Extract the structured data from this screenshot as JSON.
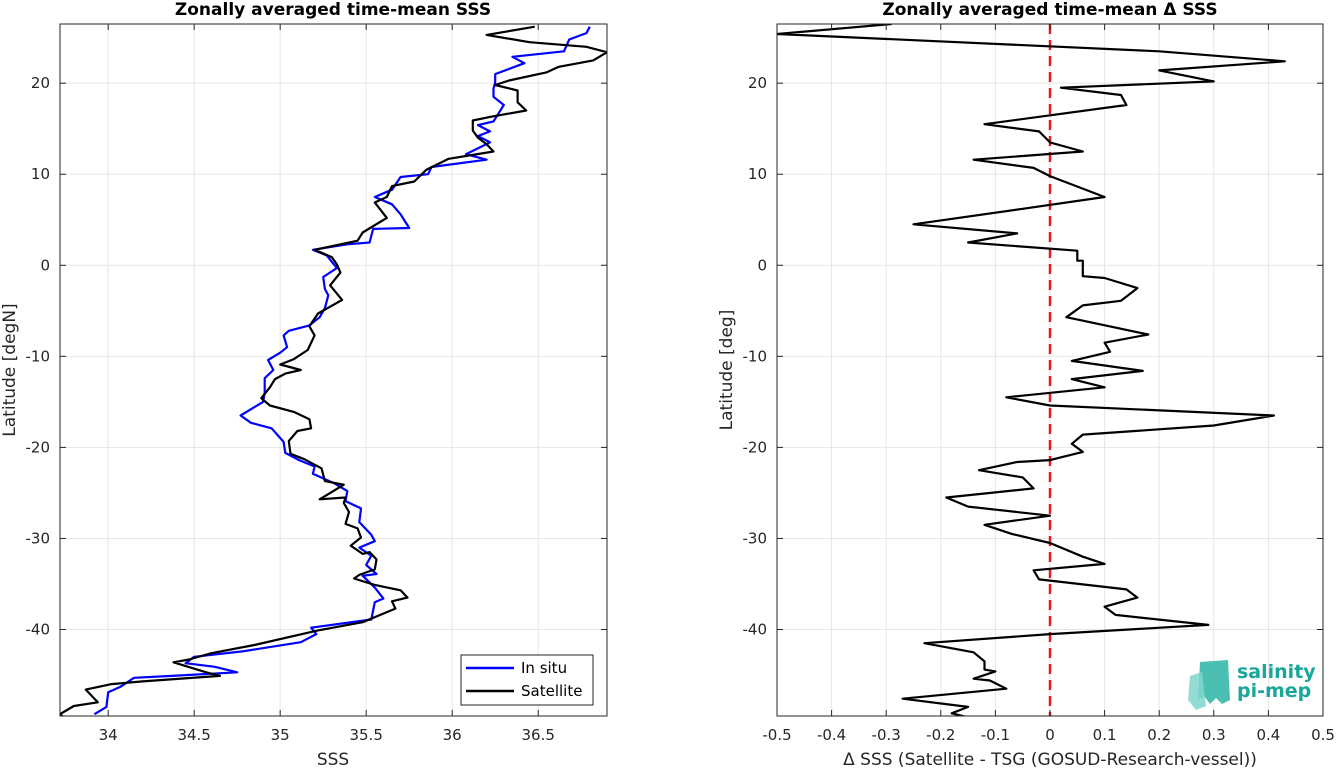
{
  "chart_data": [
    {
      "type": "line",
      "title": "Zonally averaged time-mean SSS",
      "xlabel": "SSS",
      "ylabel": "Latitude [degN]",
      "xlim": [
        33.72,
        36.9
      ],
      "ylim": [
        -49.5,
        26.5
      ],
      "xticks": [
        34,
        34.5,
        35,
        35.5,
        36,
        36.5
      ],
      "xtick_labels": [
        "34",
        "34.5",
        "35",
        "35.5",
        "36",
        "36.5"
      ],
      "yticks": [
        -40,
        -30,
        -20,
        -10,
        0,
        10,
        20
      ],
      "ytick_labels": [
        "-40",
        "-30",
        "-20",
        "-10",
        "0",
        "10",
        "20"
      ],
      "grid": true,
      "legend_position": "bottom-right",
      "series": [
        {
          "name": "In situ",
          "color": "#0000ff",
          "points": [
            [
              36.8,
              26.2
            ],
            [
              36.78,
              25.5
            ],
            [
              36.68,
              24.8
            ],
            [
              36.65,
              23.5
            ],
            [
              36.35,
              22.9
            ],
            [
              36.42,
              22.2
            ],
            [
              36.25,
              21.0
            ],
            [
              36.25,
              20.1
            ],
            [
              36.24,
              19.4
            ],
            [
              36.24,
              18.5
            ],
            [
              36.3,
              17.6
            ],
            [
              36.24,
              15.8
            ],
            [
              36.15,
              15.4
            ],
            [
              36.22,
              14.7
            ],
            [
              36.15,
              14.2
            ],
            [
              36.22,
              13.5
            ],
            [
              36.08,
              12.2
            ],
            [
              36.2,
              11.6
            ],
            [
              35.88,
              10.8
            ],
            [
              35.86,
              10.0
            ],
            [
              35.7,
              9.7
            ],
            [
              35.65,
              8.3
            ],
            [
              35.55,
              7.5
            ],
            [
              35.65,
              6.7
            ],
            [
              35.7,
              5.6
            ],
            [
              35.75,
              4.1
            ],
            [
              35.54,
              4.0
            ],
            [
              35.52,
              2.5
            ],
            [
              35.39,
              2.3
            ],
            [
              35.19,
              1.7
            ],
            [
              35.27,
              1.1
            ],
            [
              35.33,
              -0.3
            ],
            [
              35.25,
              -1.3
            ],
            [
              35.26,
              -2.6
            ],
            [
              35.28,
              -3.3
            ],
            [
              35.26,
              -4.7
            ],
            [
              35.23,
              -5.7
            ],
            [
              35.17,
              -6.6
            ],
            [
              35.05,
              -7.2
            ],
            [
              35.02,
              -7.7
            ],
            [
              35.04,
              -9.0
            ],
            [
              35.0,
              -9.6
            ],
            [
              34.93,
              -10.4
            ],
            [
              34.96,
              -11.5
            ],
            [
              34.91,
              -12.4
            ],
            [
              34.91,
              -14.0
            ],
            [
              34.9,
              -15.0
            ],
            [
              34.77,
              -16.5
            ],
            [
              34.83,
              -17.3
            ],
            [
              34.95,
              -17.9
            ],
            [
              35.02,
              -19.4
            ],
            [
              35.03,
              -20.6
            ],
            [
              35.11,
              -21.4
            ],
            [
              35.2,
              -22.1
            ],
            [
              35.19,
              -22.9
            ],
            [
              35.32,
              -24.0
            ],
            [
              35.39,
              -24.8
            ],
            [
              35.38,
              -25.9
            ],
            [
              35.47,
              -26.7
            ],
            [
              35.46,
              -28.2
            ],
            [
              35.53,
              -29.6
            ],
            [
              35.55,
              -30.3
            ],
            [
              35.46,
              -31.0
            ],
            [
              35.53,
              -31.9
            ],
            [
              35.5,
              -32.9
            ],
            [
              35.56,
              -33.9
            ],
            [
              35.48,
              -34.1
            ],
            [
              35.55,
              -35.4
            ],
            [
              35.6,
              -36.6
            ],
            [
              35.55,
              -37.0
            ],
            [
              35.53,
              -38.9
            ],
            [
              35.18,
              -39.8
            ],
            [
              35.21,
              -40.5
            ],
            [
              35.12,
              -41.4
            ],
            [
              34.78,
              -42.4
            ],
            [
              34.5,
              -43.0
            ],
            [
              34.45,
              -43.7
            ],
            [
              34.62,
              -44.1
            ],
            [
              34.75,
              -44.7
            ],
            [
              34.37,
              -45.1
            ],
            [
              34.15,
              -45.3
            ],
            [
              34.07,
              -46.3
            ],
            [
              34.0,
              -46.9
            ],
            [
              33.99,
              -48.5
            ],
            [
              33.92,
              -49.3
            ]
          ]
        },
        {
          "name": "Satellite",
          "color": "#000000",
          "points": [
            [
              36.48,
              26.2
            ],
            [
              36.2,
              25.3
            ],
            [
              36.45,
              24.5
            ],
            [
              36.78,
              24.0
            ],
            [
              36.9,
              23.4
            ],
            [
              36.82,
              22.5
            ],
            [
              36.62,
              21.8
            ],
            [
              36.55,
              21.2
            ],
            [
              36.33,
              20.3
            ],
            [
              36.25,
              19.8
            ],
            [
              36.38,
              19.2
            ],
            [
              36.38,
              17.9
            ],
            [
              36.43,
              17.0
            ],
            [
              36.22,
              16.3
            ],
            [
              36.12,
              15.9
            ],
            [
              36.12,
              14.8
            ],
            [
              36.15,
              14.0
            ],
            [
              36.2,
              13.3
            ],
            [
              36.24,
              12.5
            ],
            [
              35.98,
              11.7
            ],
            [
              35.85,
              10.5
            ],
            [
              35.78,
              9.2
            ],
            [
              35.65,
              8.7
            ],
            [
              35.62,
              7.5
            ],
            [
              35.55,
              6.9
            ],
            [
              35.62,
              5.2
            ],
            [
              35.48,
              3.6
            ],
            [
              35.45,
              2.7
            ],
            [
              35.2,
              1.7
            ],
            [
              35.3,
              0.9
            ],
            [
              35.33,
              0.1
            ],
            [
              35.35,
              -0.8
            ],
            [
              35.29,
              -2.2
            ],
            [
              35.36,
              -3.8
            ],
            [
              35.22,
              -5.3
            ],
            [
              35.17,
              -6.7
            ],
            [
              35.2,
              -7.7
            ],
            [
              35.16,
              -9.3
            ],
            [
              35.08,
              -10.3
            ],
            [
              35.0,
              -10.9
            ],
            [
              35.12,
              -11.5
            ],
            [
              35.03,
              -11.9
            ],
            [
              34.97,
              -12.5
            ],
            [
              34.94,
              -13.4
            ],
            [
              34.89,
              -14.6
            ],
            [
              34.94,
              -15.4
            ],
            [
              35.08,
              -16.1
            ],
            [
              35.17,
              -16.9
            ],
            [
              35.18,
              -17.9
            ],
            [
              35.1,
              -18.2
            ],
            [
              35.05,
              -19.3
            ],
            [
              35.06,
              -20.7
            ],
            [
              35.14,
              -21.3
            ],
            [
              35.24,
              -22.3
            ],
            [
              35.26,
              -23.7
            ],
            [
              35.37,
              -24.1
            ],
            [
              35.23,
              -25.7
            ],
            [
              35.38,
              -25.5
            ],
            [
              35.37,
              -26.1
            ],
            [
              35.4,
              -27.1
            ],
            [
              35.38,
              -28.4
            ],
            [
              35.45,
              -28.9
            ],
            [
              35.47,
              -29.9
            ],
            [
              35.41,
              -30.8
            ],
            [
              35.48,
              -31.7
            ],
            [
              35.52,
              -31.5
            ],
            [
              35.56,
              -32.3
            ],
            [
              35.55,
              -33.4
            ],
            [
              35.46,
              -34.0
            ],
            [
              35.43,
              -34.4
            ],
            [
              35.55,
              -35.1
            ],
            [
              35.7,
              -35.7
            ],
            [
              35.74,
              -36.5
            ],
            [
              35.65,
              -36.9
            ],
            [
              35.67,
              -37.7
            ],
            [
              35.48,
              -39.2
            ],
            [
              35.22,
              -40.1
            ],
            [
              34.85,
              -41.7
            ],
            [
              34.6,
              -42.6
            ],
            [
              34.47,
              -43.3
            ],
            [
              34.38,
              -43.6
            ],
            [
              34.57,
              -44.7
            ],
            [
              34.65,
              -45.1
            ],
            [
              34.2,
              -45.7
            ],
            [
              34.02,
              -46.0
            ],
            [
              33.87,
              -46.6
            ],
            [
              33.94,
              -48.0
            ],
            [
              33.8,
              -48.4
            ],
            [
              33.72,
              -49.3
            ],
            [
              33.75,
              -49.8
            ]
          ]
        }
      ]
    },
    {
      "type": "line",
      "title": "Zonally averaged time-mean Δ SSS",
      "xlabel": "Δ SSS (Satellite - TSG (GOSUD-Research-vessel))",
      "ylabel": "Latitude [deg]",
      "xlim": [
        -0.5,
        0.5
      ],
      "ylim": [
        -49.5,
        26.5
      ],
      "xticks": [
        -0.5,
        -0.4,
        -0.3,
        -0.2,
        -0.1,
        0,
        0.1,
        0.2,
        0.3,
        0.4,
        0.5
      ],
      "xtick_labels": [
        "-0.5",
        "-0.4",
        "-0.3",
        "-0.2",
        "-0.1",
        "0",
        "0.1",
        "0.2",
        "0.3",
        "0.4",
        "0.5"
      ],
      "yticks": [
        -40,
        -30,
        -20,
        -10,
        0,
        10,
        20
      ],
      "ytick_labels": [
        "-40",
        "-30",
        "-20",
        "-10",
        "0",
        "10",
        "20"
      ],
      "grid": true,
      "reference_line": {
        "x": 0,
        "color": "#e41a1c",
        "style": "dashed"
      },
      "series": [
        {
          "color": "#000000",
          "points": [
            [
              -0.29,
              26.5
            ],
            [
              -0.5,
              25.4
            ],
            [
              0.2,
              23.5
            ],
            [
              0.43,
              22.4
            ],
            [
              0.2,
              21.4
            ],
            [
              0.3,
              20.2
            ],
            [
              0.02,
              19.5
            ],
            [
              0.13,
              18.7
            ],
            [
              0.14,
              17.6
            ],
            [
              -0.12,
              15.5
            ],
            [
              -0.02,
              14.7
            ],
            [
              0.0,
              13.5
            ],
            [
              0.06,
              12.5
            ],
            [
              -0.14,
              11.6
            ],
            [
              -0.03,
              10.7
            ],
            [
              0.0,
              9.8
            ],
            [
              0.1,
              7.5
            ],
            [
              -0.05,
              6.2
            ],
            [
              -0.25,
              4.5
            ],
            [
              -0.06,
              3.5
            ],
            [
              -0.15,
              2.5
            ],
            [
              0.05,
              1.6
            ],
            [
              0.05,
              0.5
            ],
            [
              0.06,
              0.5
            ],
            [
              0.06,
              -0.2
            ],
            [
              0.06,
              -1.2
            ],
            [
              0.1,
              -1.4
            ],
            [
              0.16,
              -2.5
            ],
            [
              0.13,
              -3.9
            ],
            [
              0.06,
              -4.4
            ],
            [
              0.03,
              -5.7
            ],
            [
              0.18,
              -7.6
            ],
            [
              0.1,
              -8.5
            ],
            [
              0.11,
              -9.5
            ],
            [
              0.04,
              -10.5
            ],
            [
              0.17,
              -11.6
            ],
            [
              0.04,
              -12.5
            ],
            [
              0.1,
              -13.4
            ],
            [
              -0.08,
              -14.5
            ],
            [
              0.0,
              -15.4
            ],
            [
              0.41,
              -16.5
            ],
            [
              0.3,
              -17.6
            ],
            [
              0.06,
              -18.6
            ],
            [
              0.04,
              -19.6
            ],
            [
              0.06,
              -20.5
            ],
            [
              0.0,
              -21.4
            ],
            [
              -0.06,
              -21.6
            ],
            [
              -0.13,
              -22.5
            ],
            [
              -0.05,
              -23.3
            ],
            [
              -0.03,
              -24.5
            ],
            [
              -0.19,
              -25.5
            ],
            [
              -0.15,
              -26.5
            ],
            [
              0.0,
              -27.5
            ],
            [
              -0.12,
              -28.5
            ],
            [
              -0.07,
              -29.5
            ],
            [
              0.0,
              -30.5
            ],
            [
              0.06,
              -32.0
            ],
            [
              0.1,
              -32.8
            ],
            [
              -0.03,
              -33.5
            ],
            [
              -0.02,
              -34.5
            ],
            [
              0.14,
              -35.6
            ],
            [
              0.16,
              -36.5
            ],
            [
              0.1,
              -37.5
            ],
            [
              0.12,
              -38.4
            ],
            [
              0.29,
              -39.5
            ],
            [
              0.0,
              -40.5
            ],
            [
              -0.23,
              -41.5
            ],
            [
              -0.14,
              -42.5
            ],
            [
              -0.12,
              -43.5
            ],
            [
              -0.12,
              -44.4
            ],
            [
              -0.1,
              -44.6
            ],
            [
              -0.14,
              -45.4
            ],
            [
              -0.11,
              -45.6
            ],
            [
              -0.08,
              -46.5
            ],
            [
              -0.27,
              -47.6
            ],
            [
              -0.15,
              -48.5
            ],
            [
              -0.18,
              -49.2
            ],
            [
              -0.14,
              -49.8
            ]
          ]
        }
      ]
    }
  ],
  "legend": {
    "items": [
      {
        "label": "In situ",
        "color": "#0000ff"
      },
      {
        "label": "Satellite",
        "color": "#000000"
      }
    ]
  },
  "logo": {
    "line1": "salinity",
    "line2": "pi-mep",
    "color": "#1aa69a"
  }
}
